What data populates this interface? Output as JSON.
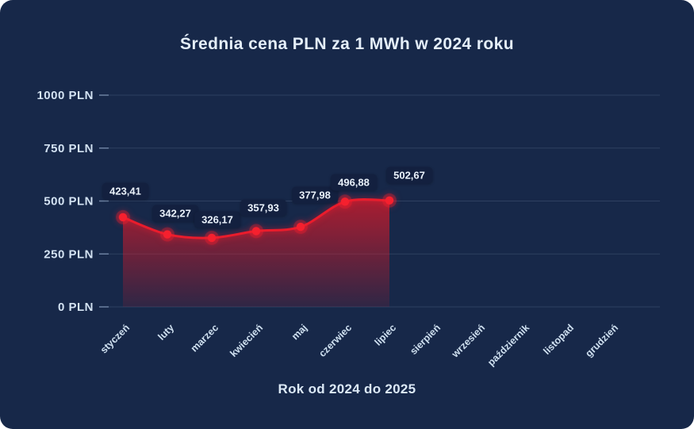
{
  "theme": {
    "background": "#172849",
    "title_color": "#e4eef9",
    "axis_label_color": "#d3e2f2",
    "grid_color": "#46587a",
    "tick_color": "#7388a8",
    "line_color": "#ea1c2c",
    "marker_color": "#f5202e",
    "area_color": "#e11928",
    "label_box_bg": "#13203f",
    "label_text_color": "#eaf2fb"
  },
  "chart_data": {
    "type": "area",
    "title": "Średnia cena PLN za 1 MWh w 2024 roku",
    "xlabel": "Rok od 2024 do 2025",
    "ylabel": "",
    "categories": [
      "styczeń",
      "luty",
      "marzec",
      "kwiecień",
      "maj",
      "czerwiec",
      "lipiec",
      "sierpień",
      "wrzesień",
      "październik",
      "listopad",
      "grudzień"
    ],
    "series": [
      {
        "name": "Średnia cena PLN za 1 MWh",
        "values": [
          423.41,
          342.27,
          326.17,
          357.93,
          377.98,
          496.88,
          502.67
        ]
      }
    ],
    "value_labels": [
      "423,41",
      "342,27",
      "326,17",
      "357,93",
      "377,98",
      "496,88",
      "502,67"
    ],
    "y_ticks": {
      "values": [
        0,
        250,
        500,
        750,
        1000
      ],
      "labels": [
        "0 PLN",
        "250 PLN",
        "500 PLN",
        "750 PLN",
        "1000 PLN"
      ]
    },
    "ylim": [
      0,
      1000
    ],
    "grid": true,
    "legend": "none",
    "smooth": true
  }
}
